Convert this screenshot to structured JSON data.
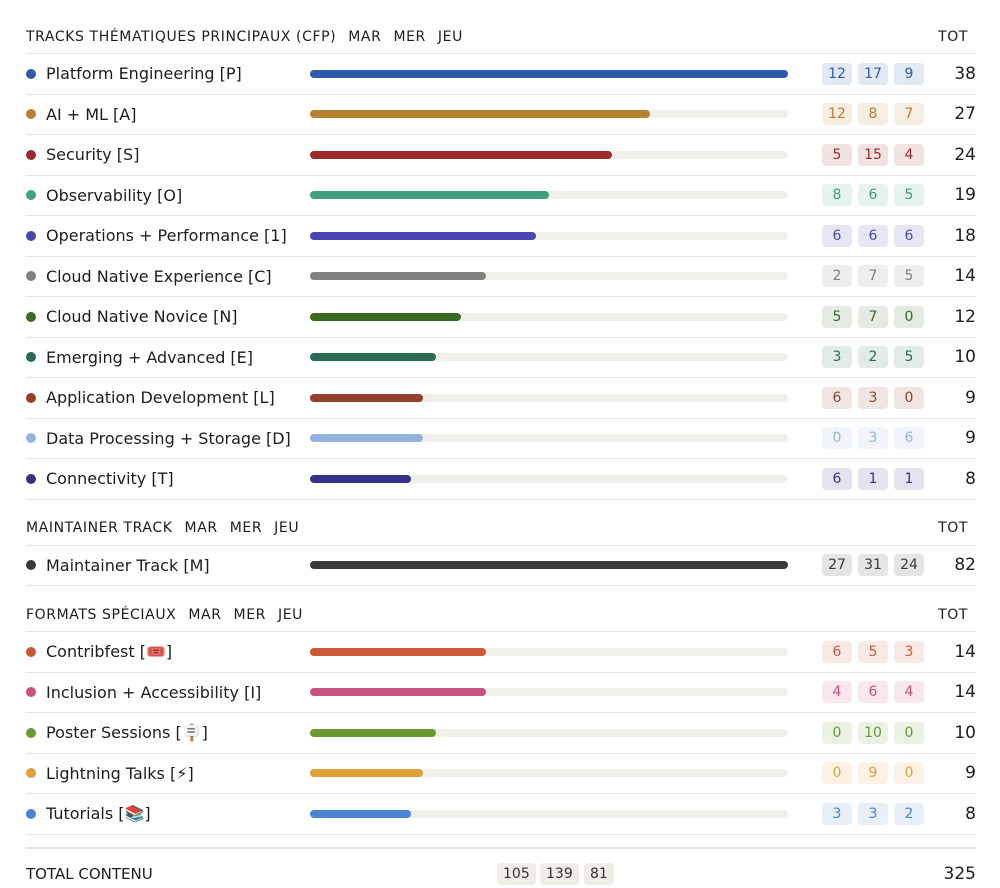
{
  "sections": [
    {
      "title": "TRACKS THÉMATIQUES PRINCIPAUX (CFP)",
      "columns": [
        "MAR",
        "MER",
        "JEU"
      ],
      "total_label": "TOT",
      "xlim": [
        0,
        38
      ],
      "rows": [
        {
          "name": "Platform Engineering [P]",
          "color": "#2c5da8",
          "mar": 12,
          "mer": 17,
          "jeu": 9,
          "tot": 38
        },
        {
          "name": "AI + ML [A]",
          "color": "#b8802f",
          "mar": 12,
          "mer": 8,
          "jeu": 7,
          "tot": 27
        },
        {
          "name": "Security [S]",
          "color": "#9b2b2b",
          "mar": 5,
          "mer": 15,
          "jeu": 4,
          "tot": 24
        },
        {
          "name": "Observability [O]",
          "color": "#3fa07e",
          "mar": 8,
          "mer": 6,
          "jeu": 5,
          "tot": 19
        },
        {
          "name": "Operations + Performance [1]",
          "color": "#4b46b0",
          "mar": 6,
          "mer": 6,
          "jeu": 6,
          "tot": 18
        },
        {
          "name": "Cloud Native Experience [C]",
          "color": "#808080",
          "mar": 2,
          "mer": 7,
          "jeu": 5,
          "tot": 14
        },
        {
          "name": "Cloud Native Novice [N]",
          "color": "#3b6b22",
          "mar": 5,
          "mer": 7,
          "jeu": 0,
          "tot": 12
        },
        {
          "name": "Emerging + Advanced [E]",
          "color": "#2b6b52",
          "mar": 3,
          "mer": 2,
          "jeu": 5,
          "tot": 10
        },
        {
          "name": "Application Development [L]",
          "color": "#963f2f",
          "mar": 6,
          "mer": 3,
          "jeu": 0,
          "tot": 9
        },
        {
          "name": "Data Processing + Storage [D]",
          "color": "#93b4e0",
          "mar": 0,
          "mer": 3,
          "jeu": 6,
          "tot": 9
        },
        {
          "name": "Connectivity [T]",
          "color": "#37308a",
          "mar": 6,
          "mer": 1,
          "jeu": 1,
          "tot": 8
        }
      ]
    },
    {
      "title": "MAINTAINER TRACK",
      "columns": [
        "MAR",
        "MER",
        "JEU"
      ],
      "total_label": "TOT",
      "xlim": [
        0,
        82
      ],
      "rows": [
        {
          "name": "Maintainer Track [M]",
          "color": "#3a3a3a",
          "mar": 27,
          "mer": 31,
          "jeu": 24,
          "tot": 82
        }
      ]
    },
    {
      "title": "FORMATS SPÉCIAUX",
      "columns": [
        "MAR",
        "MER",
        "JEU"
      ],
      "total_label": "TOT",
      "xlim": [
        0,
        38
      ],
      "rows": [
        {
          "name": "Contribfest [🎟️]",
          "color": "#cc5a35",
          "mar": 6,
          "mer": 5,
          "jeu": 3,
          "tot": 14
        },
        {
          "name": "Inclusion + Accessibility [I]",
          "color": "#c85380",
          "mar": 4,
          "mer": 6,
          "jeu": 4,
          "tot": 14
        },
        {
          "name": "Poster Sessions [🪧]",
          "color": "#6a9a2f",
          "mar": 0,
          "mer": 10,
          "jeu": 0,
          "tot": 10
        },
        {
          "name": "Lightning Talks [⚡]",
          "color": "#e0a03a",
          "mar": 0,
          "mer": 9,
          "jeu": 0,
          "tot": 9
        },
        {
          "name": "Tutorials [📚]",
          "color": "#4a84d4",
          "mar": 3,
          "mer": 3,
          "jeu": 2,
          "tot": 8
        }
      ]
    }
  ],
  "total": {
    "label": "TOTAL CONTENU",
    "mar": 105,
    "mer": 139,
    "jeu": 81,
    "tot": 325
  }
}
